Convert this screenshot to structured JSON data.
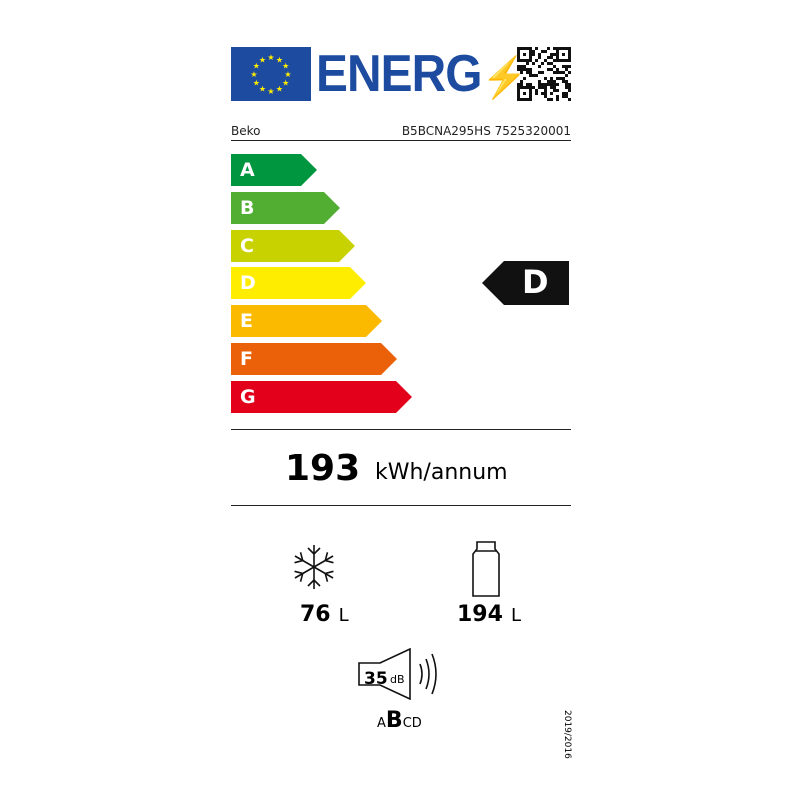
{
  "header": {
    "logo_text": "ENERG",
    "supplier": "Beko",
    "model": "B5BCNA295HS 7525320001"
  },
  "scale": [
    {
      "label": "A",
      "color": "#00963f",
      "end": 317
    },
    {
      "label": "B",
      "color": "#52ae32",
      "end": 340
    },
    {
      "label": "C",
      "color": "#c8d200",
      "end": 355
    },
    {
      "label": "D",
      "color": "#ffed00",
      "end": 366
    },
    {
      "label": "E",
      "color": "#fbba00",
      "end": 382
    },
    {
      "label": "F",
      "color": "#eb6109",
      "end": 397
    },
    {
      "label": "G",
      "color": "#e2001a",
      "end": 412
    }
  ],
  "rating": {
    "class": "D"
  },
  "consumption": {
    "value": "193",
    "unit": "kWh/annum"
  },
  "freezer": {
    "icon": "snowflake-icon",
    "value": "76",
    "unit": "L"
  },
  "fridge": {
    "icon": "bottle-icon",
    "value": "194",
    "unit": "L"
  },
  "noise": {
    "icon": "speaker-icon",
    "value": "35",
    "unit": "dB",
    "classes": [
      "A",
      "B",
      "C",
      "D"
    ],
    "selected": "B"
  },
  "regulation": "2019/2016"
}
